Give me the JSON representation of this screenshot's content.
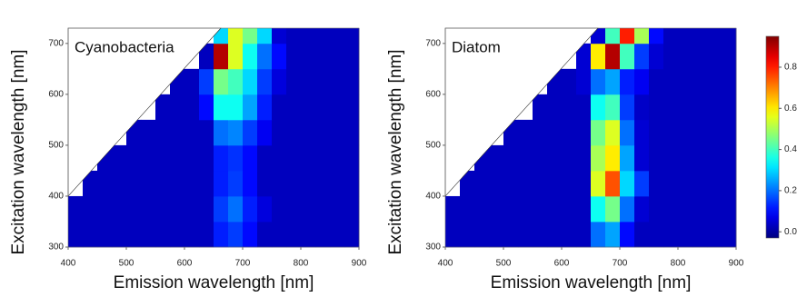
{
  "chart_data": [
    {
      "type": "heatmap",
      "label": "Cyanobacteria",
      "xlabel": "Emission wavelength [nm]",
      "ylabel": "Excitation wavelength [nm]",
      "xlim": [
        400,
        900
      ],
      "ylim": [
        300,
        730
      ],
      "xticks": [
        400,
        500,
        600,
        700,
        800,
        900
      ],
      "yticks": [
        300,
        400,
        500,
        600,
        700
      ],
      "xbins": [
        400,
        425,
        450,
        475,
        500,
        525,
        550,
        575,
        600,
        625,
        650,
        675,
        700,
        725,
        750,
        775,
        800,
        825,
        850,
        875,
        900
      ],
      "ybins": [
        300,
        350,
        400,
        450,
        500,
        550,
        600,
        650,
        700,
        730
      ],
      "z": [
        [
          0.03,
          0.03,
          0.03,
          0.03,
          0.03,
          0.03,
          0.03,
          0.03,
          0.03,
          0.03,
          0.12,
          0.15,
          0.1,
          0.03,
          0.03,
          0.03,
          0.03,
          0.03,
          0.03,
          0.03
        ],
        [
          0.03,
          0.03,
          0.03,
          0.03,
          0.03,
          0.03,
          0.03,
          0.03,
          0.03,
          0.03,
          0.15,
          0.2,
          0.12,
          0.06,
          0.03,
          0.03,
          0.03,
          0.03,
          0.03,
          0.03
        ],
        [
          null,
          0.03,
          0.03,
          0.03,
          0.03,
          0.03,
          0.03,
          0.03,
          0.03,
          0.03,
          0.12,
          0.15,
          0.1,
          0.03,
          0.03,
          0.03,
          0.03,
          0.03,
          0.03,
          0.03
        ],
        [
          null,
          null,
          0.03,
          0.03,
          0.03,
          0.03,
          0.03,
          0.03,
          0.03,
          0.03,
          0.12,
          0.14,
          0.1,
          0.03,
          0.03,
          0.03,
          0.03,
          0.03,
          0.03,
          0.03
        ],
        [
          null,
          null,
          null,
          null,
          0.03,
          0.03,
          0.03,
          0.03,
          0.03,
          0.03,
          0.2,
          0.22,
          0.15,
          0.08,
          0.03,
          0.03,
          0.03,
          0.03,
          0.03,
          0.03
        ],
        [
          null,
          null,
          null,
          null,
          null,
          null,
          0.03,
          0.03,
          0.03,
          0.1,
          0.35,
          0.35,
          0.25,
          0.12,
          0.03,
          0.03,
          0.03,
          0.03,
          0.03,
          0.03
        ],
        [
          null,
          null,
          null,
          null,
          null,
          null,
          null,
          0.03,
          0.03,
          0.15,
          0.45,
          0.4,
          0.3,
          0.15,
          0.06,
          0.03,
          0.03,
          0.03,
          0.03,
          0.03
        ],
        [
          null,
          null,
          null,
          null,
          null,
          null,
          null,
          null,
          null,
          0.03,
          0.9,
          0.55,
          0.35,
          0.2,
          0.1,
          0.03,
          0.03,
          0.03,
          0.03,
          0.03
        ],
        [
          null,
          null,
          null,
          null,
          null,
          null,
          null,
          null,
          null,
          null,
          0.3,
          0.55,
          0.45,
          0.3,
          0.05,
          0.03,
          0.03,
          0.03,
          0.03,
          0.03
        ]
      ]
    },
    {
      "type": "heatmap",
      "label": "Diatom",
      "xlabel": "Emission wavelength [nm]",
      "ylabel": "Excitation wavelength [nm]",
      "xlim": [
        400,
        900
      ],
      "ylim": [
        300,
        730
      ],
      "xticks": [
        400,
        500,
        600,
        700,
        800,
        900
      ],
      "yticks": [
        300,
        400,
        500,
        600,
        700
      ],
      "xbins": [
        400,
        425,
        450,
        475,
        500,
        525,
        550,
        575,
        600,
        625,
        650,
        675,
        700,
        725,
        750,
        775,
        800,
        825,
        850,
        875,
        900
      ],
      "ybins": [
        300,
        350,
        400,
        450,
        500,
        550,
        600,
        650,
        700,
        730
      ],
      "z": [
        [
          0.03,
          0.03,
          0.03,
          0.03,
          0.03,
          0.03,
          0.03,
          0.03,
          0.03,
          0.03,
          0.2,
          0.25,
          0.1,
          0.03,
          0.03,
          0.03,
          0.03,
          0.03,
          0.03,
          0.03
        ],
        [
          0.03,
          0.03,
          0.03,
          0.03,
          0.03,
          0.03,
          0.03,
          0.03,
          0.03,
          0.03,
          0.35,
          0.45,
          0.2,
          0.05,
          0.03,
          0.03,
          0.03,
          0.03,
          0.03,
          0.03
        ],
        [
          null,
          0.03,
          0.03,
          0.03,
          0.03,
          0.03,
          0.03,
          0.03,
          0.03,
          0.03,
          0.55,
          0.75,
          0.3,
          0.15,
          0.03,
          0.03,
          0.03,
          0.03,
          0.03,
          0.03
        ],
        [
          null,
          null,
          0.03,
          0.03,
          0.03,
          0.03,
          0.03,
          0.03,
          0.03,
          0.03,
          0.5,
          0.6,
          0.25,
          0.05,
          0.03,
          0.03,
          0.03,
          0.03,
          0.03,
          0.03
        ],
        [
          null,
          null,
          null,
          null,
          0.03,
          0.03,
          0.03,
          0.03,
          0.03,
          0.03,
          0.45,
          0.55,
          0.2,
          0.05,
          0.03,
          0.03,
          0.03,
          0.03,
          0.03,
          0.03
        ],
        [
          null,
          null,
          null,
          null,
          null,
          null,
          0.03,
          0.03,
          0.03,
          0.03,
          0.35,
          0.4,
          0.15,
          0.04,
          0.03,
          0.03,
          0.03,
          0.03,
          0.03,
          0.03
        ],
        [
          null,
          null,
          null,
          null,
          null,
          null,
          null,
          0.03,
          0.03,
          0.05,
          0.2,
          0.25,
          0.12,
          0.08,
          0.03,
          0.03,
          0.03,
          0.03,
          0.03,
          0.03
        ],
        [
          null,
          null,
          null,
          null,
          null,
          null,
          null,
          null,
          null,
          0.05,
          0.6,
          0.9,
          0.4,
          0.15,
          0.05,
          0.03,
          0.03,
          0.03,
          0.03,
          0.03
        ],
        [
          null,
          null,
          null,
          null,
          null,
          null,
          null,
          null,
          null,
          null,
          0.05,
          0.4,
          0.8,
          0.5,
          0.1,
          0.03,
          0.03,
          0.03,
          0.03,
          0.03
        ]
      ]
    }
  ],
  "colorbar": {
    "colormap": "jet",
    "zlim": [
      -0.03,
      0.95
    ],
    "ticks": [
      {
        "value": 0,
        "label": "0.0"
      },
      0.2,
      0.4,
      0.6,
      0.8
    ]
  }
}
